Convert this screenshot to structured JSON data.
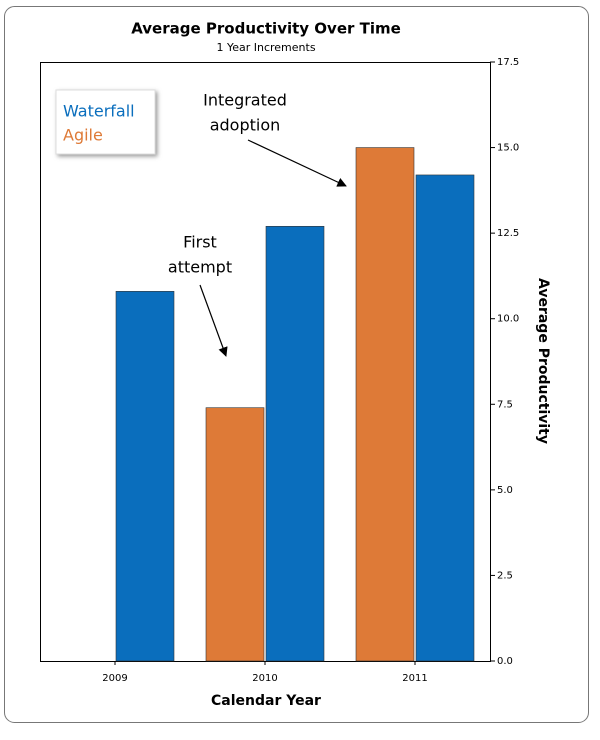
{
  "chart_data": {
    "type": "bar",
    "title": "Average Productivity Over Time",
    "subtitle": "1 Year Increments",
    "x_label": "Calendar Year",
    "y_label": "Average Productivity",
    "categories": [
      "2009",
      "2010",
      "2011"
    ],
    "series": [
      {
        "name": "Agile",
        "color": "#de7a37",
        "values": [
          null,
          7.4,
          15.0
        ]
      },
      {
        "name": "Waterfall",
        "color": "#0a6ebd",
        "values": [
          10.8,
          12.7,
          14.2
        ]
      }
    ],
    "legend_order": [
      "Waterfall",
      "Agile"
    ],
    "ylim": [
      0,
      17.5
    ],
    "yticks": [
      {
        "value": 0,
        "label": "0.0"
      },
      {
        "value": 2.5,
        "label": "2.5"
      },
      {
        "value": 5,
        "label": "5.0"
      },
      {
        "value": 7.5,
        "label": "7.5"
      },
      {
        "value": 10,
        "label": "10.0"
      },
      {
        "value": 12.5,
        "label": "12.5"
      },
      {
        "value": 15,
        "label": "15.0"
      },
      {
        "value": 17.5,
        "label": "17.5"
      }
    ],
    "y_axis_side": "right",
    "legend_position": "upper left",
    "annotations": [
      {
        "lines": [
          "Integrated",
          "adoption"
        ]
      },
      {
        "lines": [
          "First",
          "attempt"
        ]
      }
    ]
  }
}
